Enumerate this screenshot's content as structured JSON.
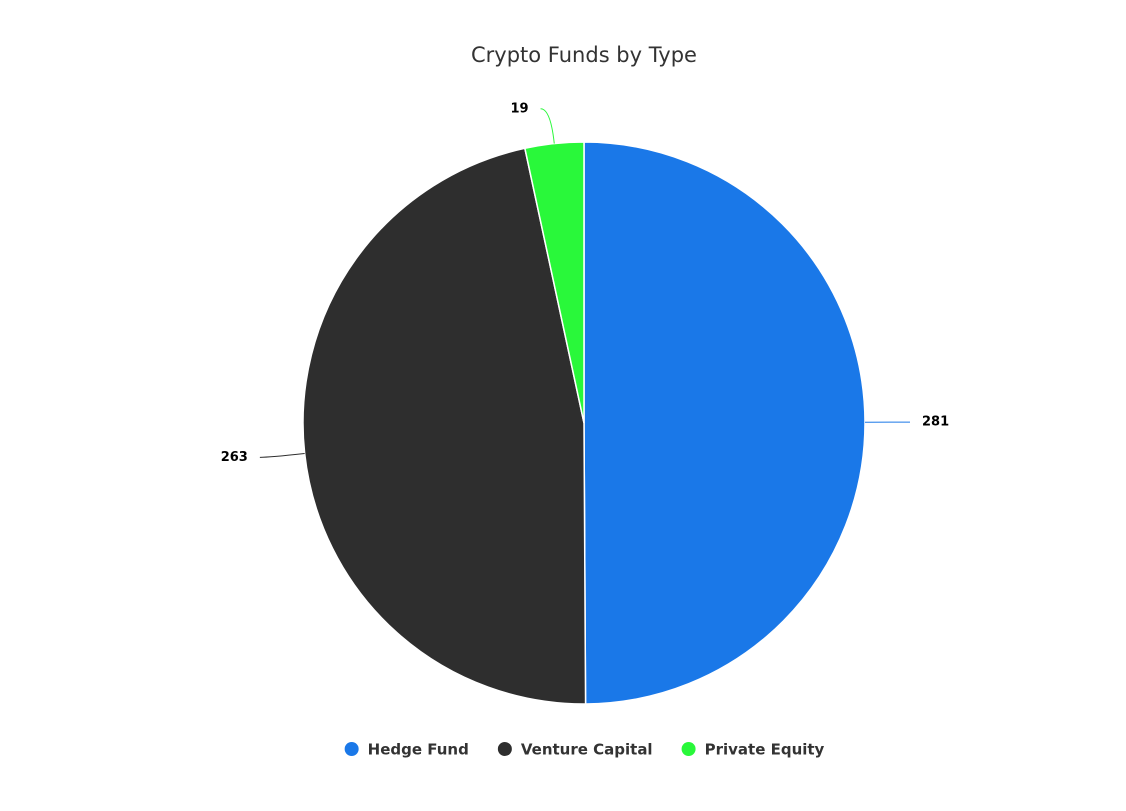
{
  "chart_data": {
    "type": "pie",
    "title": "Crypto Funds by Type",
    "categories": [
      "Hedge Fund",
      "Venture Capital",
      "Private Equity"
    ],
    "values": [
      281,
      263,
      19
    ],
    "colors": [
      "#1a78e8",
      "#2e2e2e",
      "#29f83a"
    ],
    "legend": "bottom"
  }
}
